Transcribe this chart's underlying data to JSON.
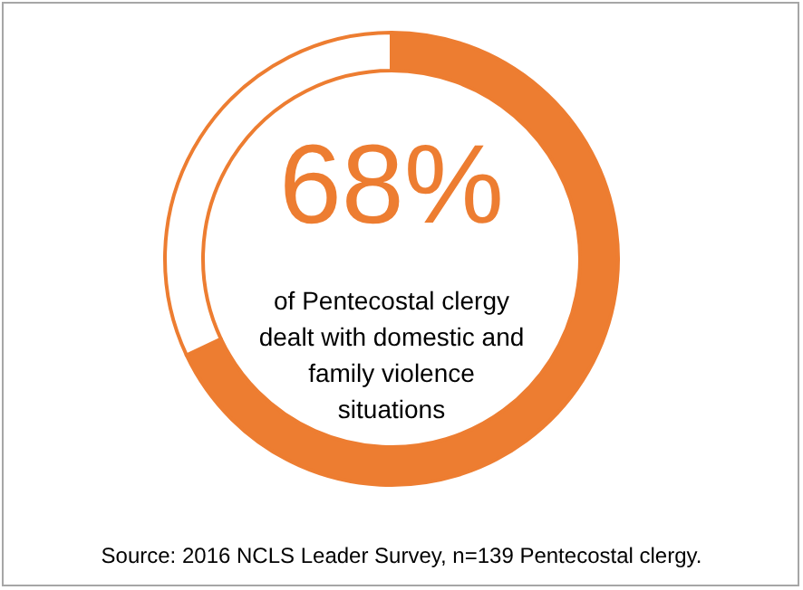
{
  "chart_data": {
    "type": "donut",
    "categories": [
      null,
      null
    ],
    "values": [
      68,
      32
    ],
    "colors": [
      "#ed7d31",
      "#ffffff"
    ],
    "value_labels": [
      "68%",
      null
    ],
    "subtitle": "of Pentecostal clergy dealt with domestic and family violence situations",
    "annotations": [
      "Source: 2016 NCLS Leader Survey, n=139 Pentecostal clergy."
    ]
  }
}
